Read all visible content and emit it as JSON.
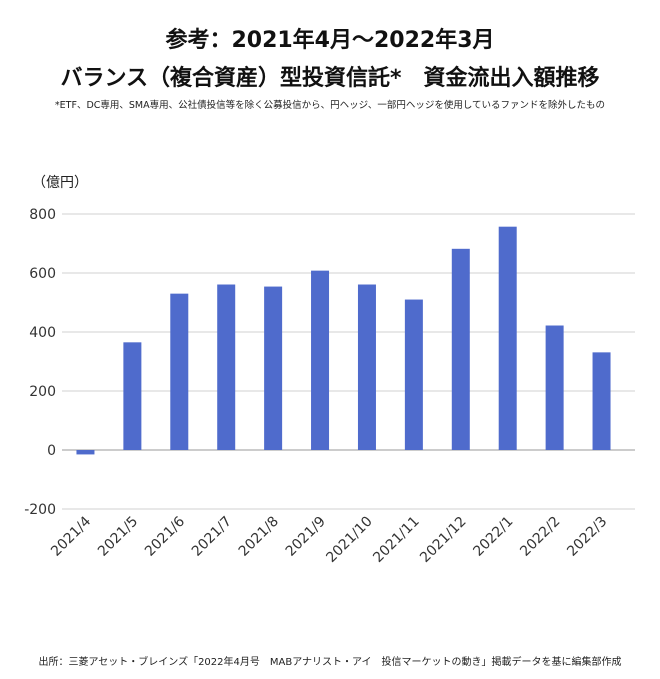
{
  "title_line1": "参考：2021年4月〜2022年3月",
  "title_line2": "バランス（複合資産）型投資信託*　資金流出入額推移",
  "note": "*ETF、DC専用、SMA専用、公社債投信等を除く公募投信から、円ヘッジ、一部円ヘッジを使用しているファンドを除外したもの",
  "source": "出所：三菱アセット・ブレインズ「2022年4月号　MABアナリスト・アイ　投信マーケットの動き」掲載データを基に編集部作成",
  "chart_data": {
    "type": "bar",
    "title": "バランス（複合資産）型投資信託*　資金流出入額推移",
    "ylabel": "（億円）",
    "xlabel": "",
    "categories": [
      "2021/4",
      "2021/5",
      "2021/6",
      "2021/7",
      "2021/8",
      "2021/9",
      "2021/10",
      "2021/11",
      "2021/12",
      "2022/1",
      "2022/2",
      "2022/3"
    ],
    "values": [
      -15,
      365,
      530,
      561,
      554,
      608,
      561,
      510,
      682,
      757,
      422,
      331
    ],
    "ylim": [
      -200,
      800
    ],
    "yticks": [
      800,
      600,
      400,
      200,
      0,
      -200
    ],
    "ytick_labels": [
      "800",
      "600",
      "400",
      "200",
      "0",
      "-200"
    ],
    "grid": true,
    "bar_color": "#4f6bcc",
    "negative_label_color": "#e02020"
  }
}
